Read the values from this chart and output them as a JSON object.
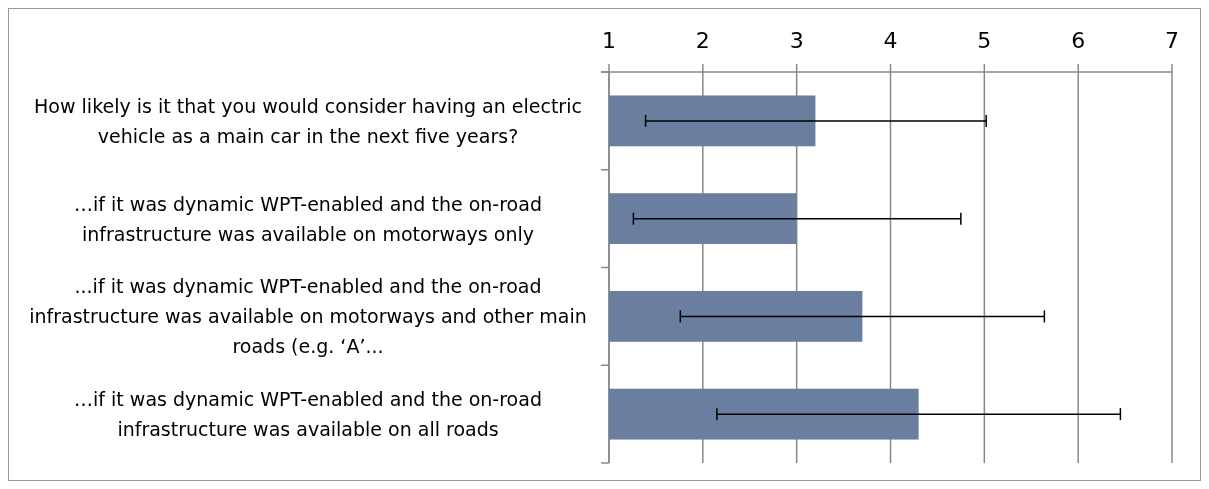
{
  "chart_data": {
    "type": "bar",
    "orientation": "horizontal",
    "categories": [
      "How likely is it that you would consider having an electric vehicle as a main car in the next five years?",
      "…if it was dynamic WPT-enabled and the on-road infrastructure was available on motorways only",
      "...if it was dynamic WPT-enabled and the on-road infrastructure was available on motorways and other main roads (e.g. ‘A’...",
      "…if it was dynamic WPT-enabled and the on-road infrastructure was available on all roads"
    ],
    "values": [
      3.2,
      3.0,
      3.7,
      4.3
    ],
    "errors": [
      [
        1.39,
        5.02
      ],
      [
        1.26,
        4.75
      ],
      [
        1.76,
        5.64
      ],
      [
        2.15,
        6.45
      ]
    ],
    "color": "#6a7f9f",
    "xlim": [
      1,
      7
    ],
    "xticks": [
      1,
      2,
      3,
      4,
      5,
      6,
      7
    ],
    "grid": "x"
  }
}
